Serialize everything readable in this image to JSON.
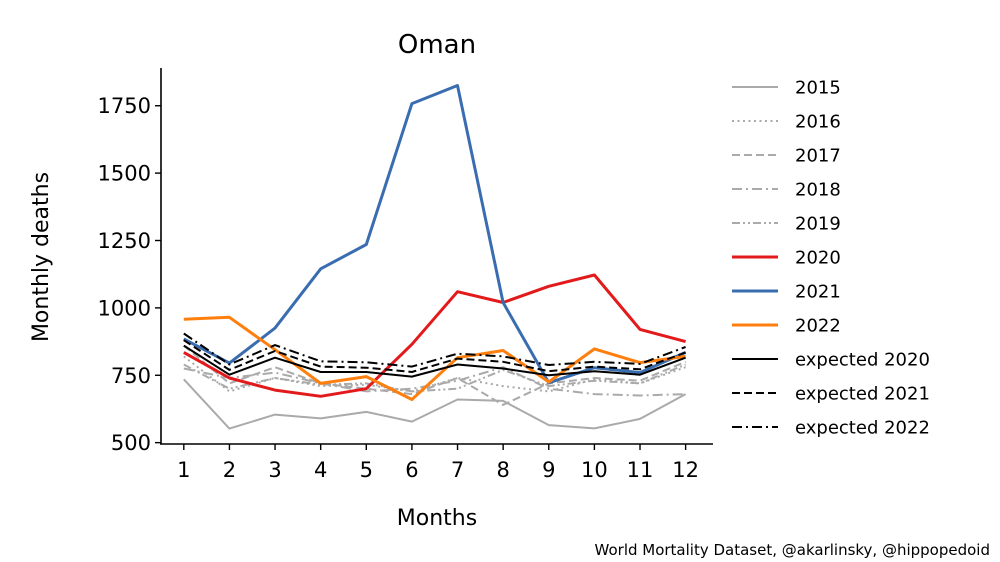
{
  "chart_data": {
    "type": "line",
    "title": "Oman",
    "xlabel": "Months",
    "ylabel": "Monthly deaths",
    "x": [
      1,
      2,
      3,
      4,
      5,
      6,
      7,
      8,
      9,
      10,
      11,
      12
    ],
    "x_tick_labels": [
      "1",
      "2",
      "3",
      "4",
      "5",
      "6",
      "7",
      "8",
      "9",
      "10",
      "11",
      "12"
    ],
    "y_ticks": [
      500,
      750,
      1000,
      1250,
      1500,
      1750
    ],
    "y_tick_labels": [
      "500",
      "750",
      "1000",
      "1250",
      "1500",
      "1750"
    ],
    "xlim": [
      0.5,
      12.6
    ],
    "ylim": [
      495,
      1890
    ],
    "grid": false,
    "legend_position": "outside right",
    "series": [
      {
        "name": "2015",
        "color": "#aaaaaa",
        "dash": "solid",
        "width": 2,
        "values": [
          735,
          552,
          604,
          590,
          614,
          578,
          660,
          655,
          565,
          553,
          588,
          680
        ]
      },
      {
        "name": "2016",
        "color": "#aaaaaa",
        "dash": "dotted",
        "width": 2,
        "values": [
          820,
          690,
          740,
          710,
          715,
          690,
          740,
          710,
          690,
          735,
          720,
          780
        ]
      },
      {
        "name": "2017",
        "color": "#aaaaaa",
        "dash": "dashed",
        "width": 2,
        "values": [
          860,
          720,
          780,
          720,
          700,
          680,
          740,
          640,
          720,
          740,
          730,
          800
        ]
      },
      {
        "name": "2018",
        "color": "#aaaaaa",
        "dash": "dashdot",
        "width": 2,
        "values": [
          775,
          740,
          760,
          720,
          690,
          700,
          730,
          780,
          700,
          680,
          675,
          680
        ]
      },
      {
        "name": "2019",
        "color": "#aaaaaa",
        "dash": "dashdotdot",
        "width": 2,
        "values": [
          790,
          700,
          740,
          715,
          720,
          690,
          700,
          770,
          710,
          730,
          720,
          790
        ]
      },
      {
        "name": "2020",
        "color": "#e31a1c",
        "dash": "solid",
        "width": 3,
        "values": [
          835,
          740,
          695,
          672,
          700,
          865,
          1060,
          1020,
          1080,
          1122,
          920,
          875
        ]
      },
      {
        "name": "2021",
        "color": "#3a6db0",
        "dash": "solid",
        "width": 3,
        "values": [
          885,
          795,
          925,
          1145,
          1235,
          1758,
          1825,
          1020,
          722,
          778,
          760,
          835
        ]
      },
      {
        "name": "2022",
        "color": "#ff7f0e",
        "dash": "solid",
        "width": 3,
        "values": [
          958,
          965,
          845,
          720,
          745,
          660,
          815,
          842,
          725,
          848,
          797,
          820
        ]
      },
      {
        "name": "expected 2020",
        "color": "#000000",
        "dash": "solid",
        "width": 2,
        "values": [
          860,
          752,
          815,
          762,
          762,
          745,
          790,
          775,
          750,
          765,
          752,
          815
        ]
      },
      {
        "name": "expected 2021",
        "color": "#000000",
        "dash": "dashed",
        "width": 2,
        "values": [
          880,
          770,
          840,
          782,
          778,
          762,
          812,
          800,
          765,
          782,
          772,
          835
        ]
      },
      {
        "name": "expected 2022",
        "color": "#000000",
        "dash": "dashdot",
        "width": 2,
        "values": [
          905,
          790,
          862,
          802,
          798,
          782,
          830,
          820,
          788,
          800,
          792,
          855
        ]
      }
    ],
    "credit": "World Mortality Dataset, @akarlinsky, @hippopedoid"
  }
}
